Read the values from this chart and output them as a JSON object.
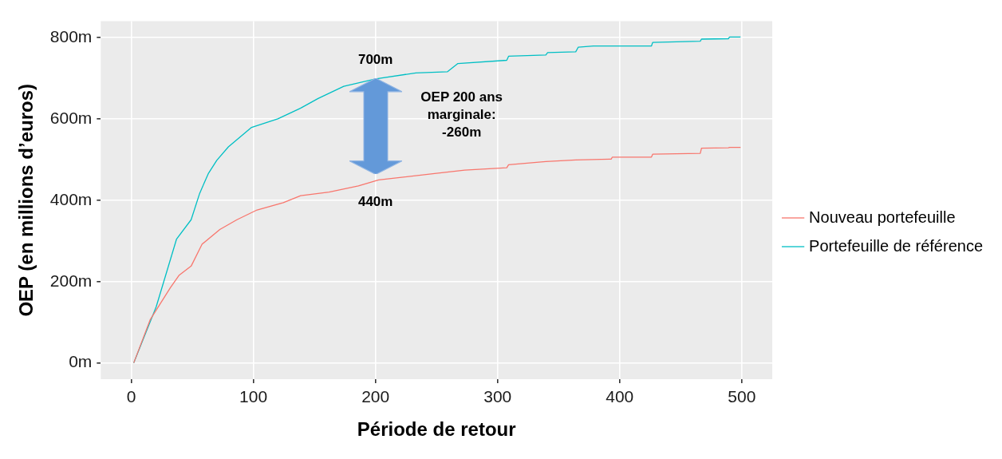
{
  "chart_data": {
    "type": "line",
    "xlabel": "Période de retour",
    "ylabel": "OEP (en millions d’euros)",
    "xlim": [
      -25,
      525
    ],
    "ylim": [
      -40,
      840
    ],
    "xticks": [
      0,
      100,
      200,
      300,
      400,
      500
    ],
    "yticks": [
      {
        "value": 0,
        "label": "0m"
      },
      {
        "value": 200,
        "label": "200m"
      },
      {
        "value": 400,
        "label": "400m"
      },
      {
        "value": 600,
        "label": "600m"
      },
      {
        "value": 800,
        "label": "800m"
      }
    ],
    "grid": true,
    "legend": "right",
    "marker": "none",
    "line_style": "solid",
    "series": [
      {
        "name": "Nouveau portefeuille",
        "color": "#f8766d",
        "x": [
          2,
          15.6,
          32,
          39,
          49,
          58,
          72.5,
          86.5,
          103,
          124.5,
          138.7,
          162,
          186,
          202.6,
          247,
          273,
          307.5,
          309,
          339.5,
          364,
          393,
          394,
          426,
          427,
          466,
          467,
          489,
          490,
          499
        ],
        "values": [
          0,
          107,
          185,
          215,
          238,
          292,
          328,
          352,
          376,
          394,
          411,
          420,
          435,
          450,
          465,
          474,
          480,
          487,
          495,
          499,
          501,
          506,
          506,
          513,
          515,
          528,
          529,
          530,
          530
        ]
      },
      {
        "name": "Portefeuille de référence",
        "color": "#00bfc4",
        "x": [
          2,
          20.4,
          37,
          49,
          56,
          63,
          70,
          79.5,
          98.5,
          120,
          138.5,
          153,
          174,
          200,
          233,
          259,
          267.5,
          307.5,
          309,
          339.5,
          341,
          364,
          366,
          378.5,
          426,
          427,
          466,
          467,
          489,
          490,
          499
        ],
        "values": [
          0,
          138,
          304,
          352,
          417,
          465,
          498,
          531,
          579,
          600,
          626,
          650,
          680,
          698,
          713,
          716,
          736,
          744,
          754,
          757,
          763,
          765,
          776,
          779,
          779,
          788,
          791,
          796,
          797,
          801,
          801
        ]
      }
    ],
    "annotations": [
      {
        "text": "700m",
        "x": 200,
        "y": 700
      },
      {
        "text": "440m",
        "x": 200,
        "y": 440
      },
      "OEP 200 ans\nmarginale:\n-260m"
    ]
  }
}
